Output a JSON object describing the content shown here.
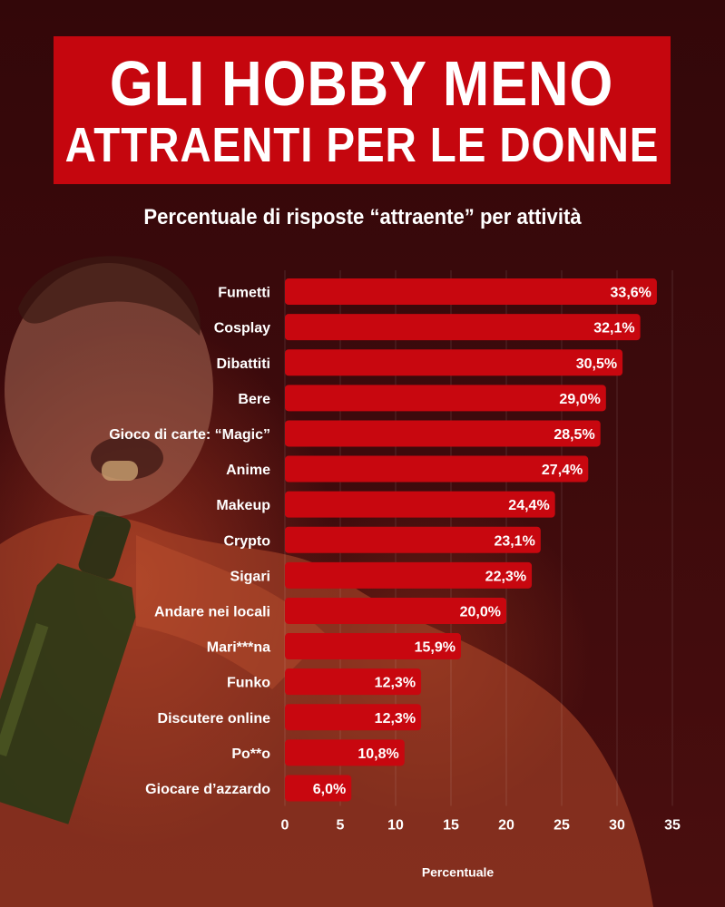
{
  "header": {
    "title_line1": "GLI HOBBY MENO",
    "title_line2": "ATTRAENTI PER LE DONNE",
    "subtitle": "Percentuale di risposte “attraente” per attività"
  },
  "colors": {
    "background": "#2a0608",
    "title_box": "#c5060e",
    "bar": "#c8070f",
    "text": "#ffffff"
  },
  "chart_data": {
    "type": "bar",
    "orientation": "horizontal",
    "categories": [
      "Fumetti",
      "Cosplay",
      "Dibattiti",
      "Bere",
      "Gioco di carte: “Magic”",
      "Anime",
      "Makeup",
      "Crypto",
      "Sigari",
      "Andare nei locali",
      "Mari***na",
      "Funko",
      "Discutere online",
      "Po**o",
      "Giocare d’azzardo"
    ],
    "values": [
      33.6,
      32.1,
      30.5,
      29.0,
      28.5,
      27.4,
      24.4,
      23.1,
      22.3,
      20.0,
      15.9,
      12.3,
      12.3,
      10.8,
      6.0
    ],
    "value_labels": [
      "33,6%",
      "32,1%",
      "30,5%",
      "29,0%",
      "28,5%",
      "27,4%",
      "24,4%",
      "23,1%",
      "22,3%",
      "20,0%",
      "15,9%",
      "12,3%",
      "12,3%",
      "10,8%",
      "6,0%"
    ],
    "xticks": [
      0,
      5,
      10,
      15,
      20,
      25,
      30,
      35
    ],
    "xlim": [
      0,
      35
    ],
    "xlabel": "Percentuale",
    "ylabel": "",
    "grid": "vertical"
  }
}
